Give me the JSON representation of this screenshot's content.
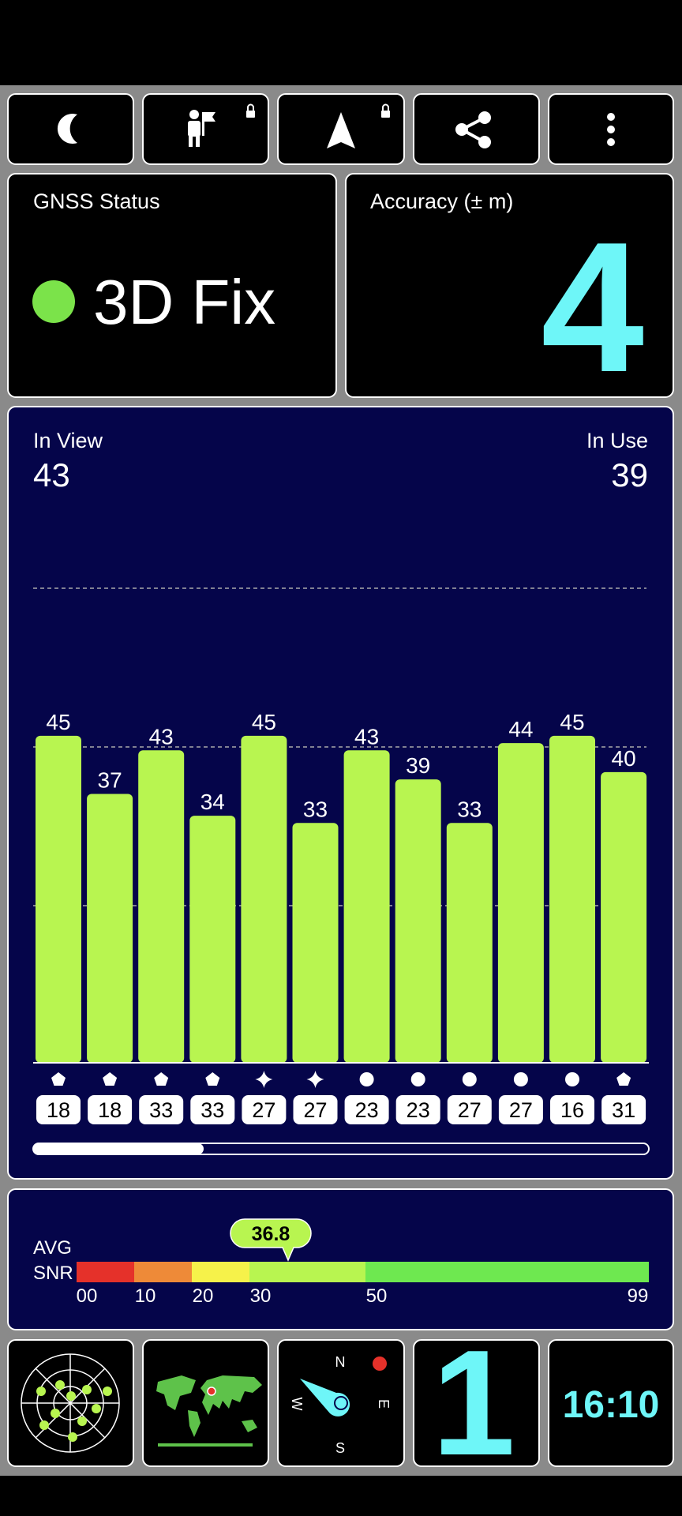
{
  "toolbar": {
    "count": 5
  },
  "gnss_status": {
    "label": "GNSS Status",
    "value": "3D Fix"
  },
  "accuracy": {
    "label": "Accuracy (± m)",
    "value": "4"
  },
  "signal_chart": {
    "in_view": {
      "label": "In View",
      "value": "43"
    },
    "in_use": {
      "label": "In Use",
      "value": "39"
    },
    "values": [
      45,
      37,
      43,
      34,
      45,
      33,
      43,
      39,
      33,
      44,
      45,
      40
    ],
    "ids": [
      "18",
      "18",
      "33",
      "33",
      "27",
      "27",
      "23",
      "23",
      "27",
      "27",
      "16",
      "31"
    ]
  },
  "avg_snr": {
    "labels": [
      "AVG",
      "SNR"
    ],
    "value": "36.8",
    "scale_labels": [
      "00",
      "10",
      "20",
      "30",
      "50",
      "99"
    ]
  },
  "compass": {
    "north": "N",
    "east": "E",
    "south": "S",
    "west": "W"
  },
  "fix_count": "1",
  "time": "16:10"
}
